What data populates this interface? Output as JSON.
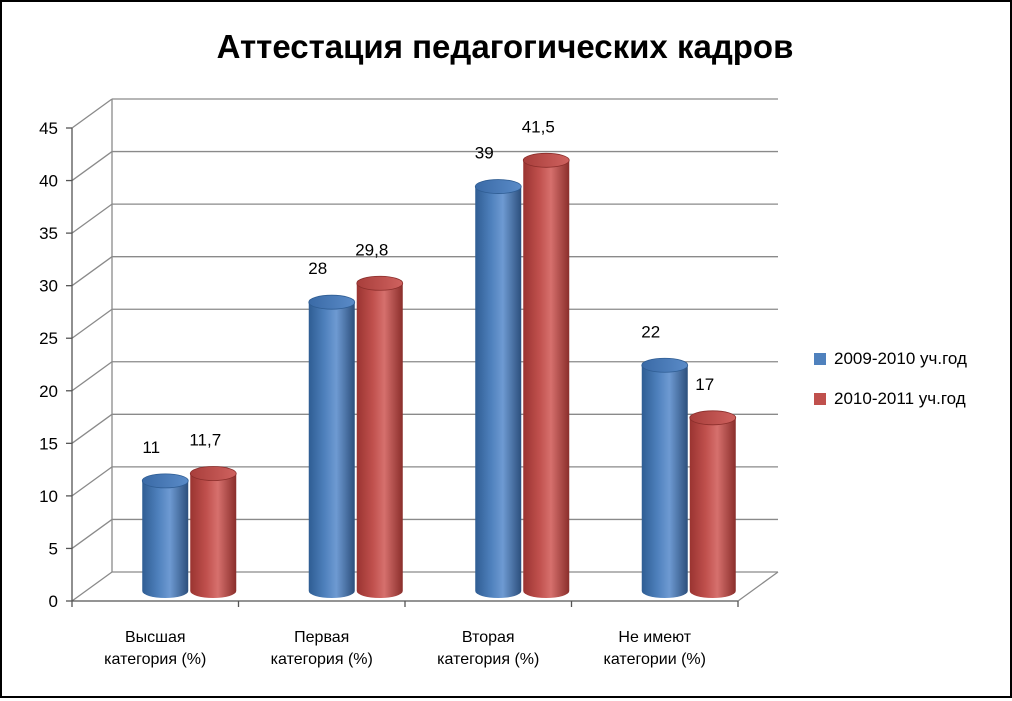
{
  "chart_data": {
    "type": "bar",
    "title": "Аттестация педагогических кадров",
    "categories": [
      [
        "Высшая",
        "категория  (%)"
      ],
      [
        "Первая",
        "категория (%)"
      ],
      [
        "Вторая",
        "категория (%)"
      ],
      [
        "Не имеют",
        "категории (%)"
      ]
    ],
    "series": [
      {
        "name": "2009-2010  уч.год",
        "values": [
          11,
          28,
          39,
          22
        ],
        "value_labels": [
          "11",
          "28",
          "39",
          "22"
        ],
        "color": "#4F81BD"
      },
      {
        "name": "2010-2011 уч.год",
        "values": [
          11.7,
          29.8,
          41.5,
          17
        ],
        "value_labels": [
          "11,7",
          "29,8",
          "41,5",
          "17"
        ],
        "color": "#C0504D"
      }
    ],
    "ylim": [
      0,
      45
    ],
    "yticks": [
      0,
      5,
      10,
      15,
      20,
      25,
      30,
      35,
      40,
      45
    ],
    "grid": true,
    "legend_position": "right",
    "style": "3d-cylinder"
  }
}
